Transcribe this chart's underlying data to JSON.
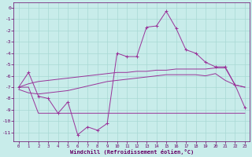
{
  "xlabel": "Windchill (Refroidissement éolien,°C)",
  "bg_color": "#c8ecea",
  "grid_color": "#a8d8d4",
  "line_color": "#993399",
  "x_ticks": [
    0,
    1,
    2,
    3,
    4,
    5,
    6,
    7,
    8,
    9,
    10,
    11,
    12,
    13,
    14,
    15,
    16,
    17,
    18,
    19,
    20,
    21,
    22,
    23
  ],
  "y_ticks": [
    0,
    -1,
    -2,
    -3,
    -4,
    -5,
    -6,
    -7,
    -8,
    -9,
    -10,
    -11
  ],
  "ylim": [
    -11.8,
    0.5
  ],
  "xlim": [
    -0.5,
    23.5
  ],
  "line1_y": [
    -7.0,
    -5.7,
    -7.8,
    -8.0,
    -9.3,
    -8.3,
    -11.2,
    -10.5,
    -10.8,
    -10.2,
    -4.0,
    -4.3,
    -4.3,
    -1.7,
    -1.6,
    -0.3,
    -1.8,
    -3.7,
    -4.0,
    -4.8,
    -5.2,
    -5.2,
    -6.8,
    -8.8
  ],
  "line2_y": [
    -7.0,
    -7.0,
    -9.3,
    -9.3,
    -9.3,
    -9.3,
    -9.3,
    -9.3,
    -9.3,
    -9.3,
    -9.3,
    -9.3,
    -9.3,
    -9.3,
    -9.3,
    -9.3,
    -9.3,
    -9.3,
    -9.3,
    -9.3,
    -9.3,
    -9.3,
    -9.3,
    -9.3
  ],
  "line3_y": [
    -7.0,
    -6.7,
    -6.5,
    -6.4,
    -6.3,
    -6.2,
    -6.1,
    -6.0,
    -5.9,
    -5.8,
    -5.7,
    -5.7,
    -5.6,
    -5.6,
    -5.5,
    -5.5,
    -5.4,
    -5.4,
    -5.4,
    -5.4,
    -5.3,
    -5.3,
    -6.8,
    -7.0
  ],
  "line4_y": [
    -7.2,
    -7.5,
    -7.6,
    -7.5,
    -7.4,
    -7.3,
    -7.1,
    -6.9,
    -6.7,
    -6.5,
    -6.4,
    -6.3,
    -6.2,
    -6.1,
    -6.0,
    -5.9,
    -5.9,
    -5.9,
    -5.9,
    -6.0,
    -5.8,
    -6.4,
    -6.8,
    -7.0
  ]
}
